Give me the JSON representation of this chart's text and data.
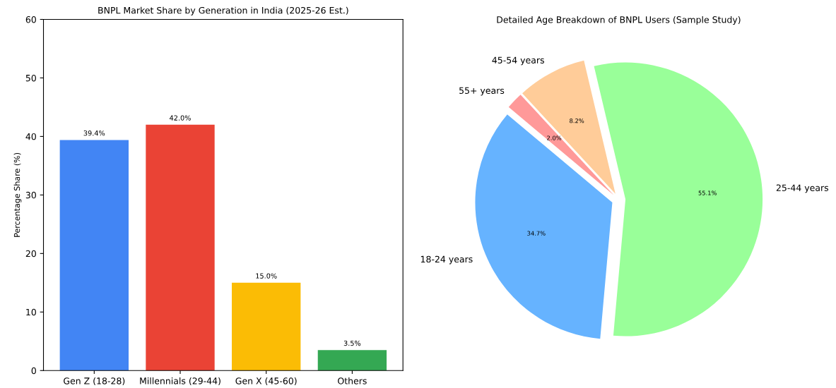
{
  "chart_data": [
    {
      "type": "bar",
      "title": "BNPL Market Share by Generation in India (2025-26 Est.)",
      "ylabel": "Percentage Share (%)",
      "categories": [
        "Gen Z (18-28)",
        "Millennials (29-44)",
        "Gen X (45-60)",
        "Others"
      ],
      "values": [
        39.4,
        42.0,
        15.0,
        3.5
      ],
      "colors": [
        "#4285f4",
        "#ea4335",
        "#fbbc05",
        "#34a853"
      ],
      "value_labels": [
        "39.4%",
        "42.0%",
        "15.0%",
        "3.5%"
      ],
      "ylim": [
        0,
        60
      ],
      "yticks": [
        0,
        10,
        20,
        30,
        40,
        50,
        60
      ]
    },
    {
      "type": "pie",
      "title": "Detailed Age Breakdown of BNPL Users (Sample Study)",
      "categories": [
        "18-24 years",
        "25-44 years",
        "45-54 years",
        "55+ years"
      ],
      "values": [
        34.7,
        55.1,
        8.2,
        2.0
      ],
      "colors": [
        "#66b3ff",
        "#99ff99",
        "#ffcc99",
        "#ff9999"
      ],
      "value_labels": [
        "34.7%",
        "55.1%",
        "8.2%",
        "2.0%"
      ]
    }
  ]
}
